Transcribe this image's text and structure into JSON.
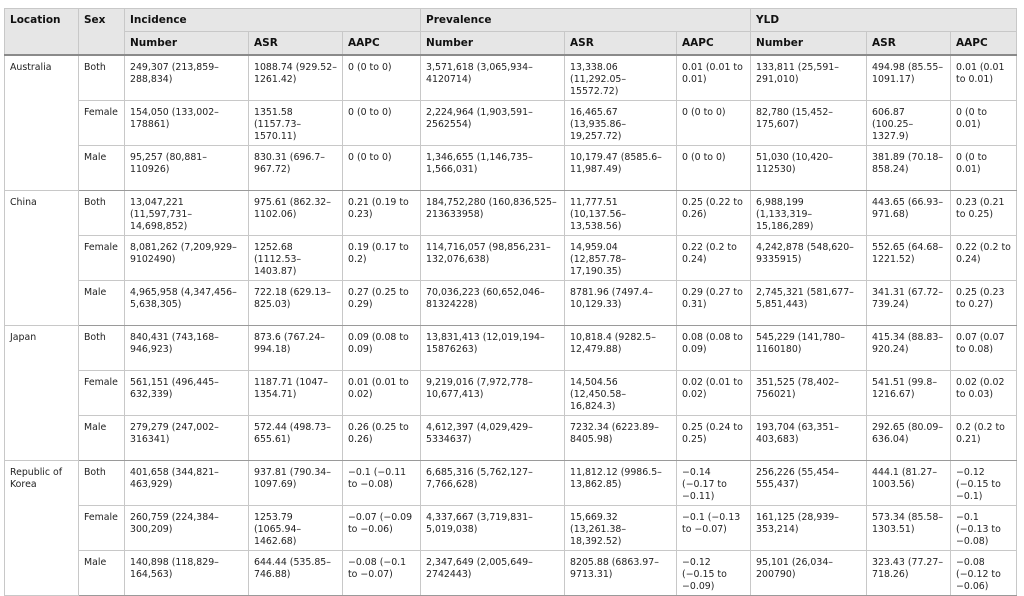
{
  "header": {
    "location": "Location",
    "sex": "Sex",
    "groups": [
      "Incidence",
      "Prevalence",
      "YLD"
    ],
    "subcolumns": [
      "Number",
      "ASR",
      "AAPC",
      "Number",
      "ASR",
      "AAPC",
      "Number",
      "ASR",
      "AAPC"
    ]
  },
  "locations": [
    {
      "name": "Australia",
      "rows": [
        {
          "sex": "Both",
          "cells": [
            "249,307 (213,859–288,834)",
            "1088.74 (929.52–1261.42)",
            "0 (0 to 0)",
            "3,571,618 (3,065,934–4120714)",
            "13,338.06 (11,292.05–15572.72)",
            "0.01 (0.01 to 0.01)",
            "133,811 (25,591–291,010)",
            "494.98 (85.55–1091.17)",
            "0.01 (0.01 to 0.01)"
          ]
        },
        {
          "sex": "Female",
          "cells": [
            "154,050 (133,002–178861)",
            "1351.58 (1157.73–1570.11)",
            "0 (0 to 0)",
            "2,224,964 (1,903,591–2562554)",
            "16,465.67 (13,935.86–19,257.72)",
            "0 (0 to 0)",
            "82,780 (15,452–175,607)",
            "606.87 (100.25–1327.9)",
            "0 (0 to 0.01)"
          ]
        },
        {
          "sex": "Male",
          "cells": [
            "95,257 (80,881–110926)",
            "830.31 (696.7–967.72)",
            "0 (0 to 0)",
            "1,346,655 (1,146,735–1,566,031)",
            "10,179.47 (8585.6–11,987.49)",
            "0 (0 to 0)",
            "51,030 (10,420–112530)",
            "381.89 (70.18–858.24)",
            "0 (0 to 0.01)"
          ]
        }
      ]
    },
    {
      "name": "China",
      "rows": [
        {
          "sex": "Both",
          "cells": [
            "13,047,221 (11,597,731–14,698,852)",
            "975.61 (862.32–1102.06)",
            "0.21 (0.19 to 0.23)",
            "184,752,280 (160,836,525–213633958)",
            "11,777.51 (10,137.56–13,538.56)",
            "0.25 (0.22 to 0.26)",
            "6,988,199 (1,133,319–15,186,289)",
            "443.65 (66.93–971.68)",
            "0.23 (0.21 to 0.25)"
          ]
        },
        {
          "sex": "Female",
          "cells": [
            "8,081,262 (7,209,929–9102490)",
            "1252.68 (1112.53–1403.87)",
            "0.19 (0.17 to 0.2)",
            "114,716,057 (98,856,231–132,076,638)",
            "14,959.04 (12,857.78–17,190.35)",
            "0.22 (0.2 to 0.24)",
            "4,242,878 (548,620–9335915)",
            "552.65 (64.68–1221.52)",
            "0.22 (0.2 to 0.24)"
          ]
        },
        {
          "sex": "Male",
          "cells": [
            "4,965,958 (4,347,456–5,638,305)",
            "722.18 (629.13–825.03)",
            "0.27 (0.25 to 0.29)",
            "70,036,223 (60,652,046–81324228)",
            "8781.96 (7497.4–10,129.33)",
            "0.29 (0.27 to 0.31)",
            "2,745,321 (581,677–5,851,443)",
            "341.31 (67.72–739.24)",
            "0.25 (0.23 to 0.27)"
          ]
        }
      ]
    },
    {
      "name": "Japan",
      "rows": [
        {
          "sex": "Both",
          "cells": [
            "840,431 (743,168–946,923)",
            "873.6 (767.24–994.18)",
            "0.09 (0.08 to 0.09)",
            "13,831,413 (12,019,194–15876263)",
            "10,818.4 (9282.5–12,479.88)",
            "0.08 (0.08 to 0.09)",
            "545,229 (141,780–1160180)",
            "415.34 (88.83–920.24)",
            "0.07 (0.07 to 0.08)"
          ]
        },
        {
          "sex": "Female",
          "cells": [
            "561,151 (496,445–632,339)",
            "1187.71 (1047–1354.71)",
            "0.01 (0.01 to 0.02)",
            "9,219,016 (7,972,778–10,677,413)",
            "14,504.56 (12,450.58–16,824.3)",
            "0.02 (0.01 to 0.02)",
            "351,525 (78,402–756021)",
            "541.51 (99.8–1216.67)",
            "0.02 (0.02 to 0.03)"
          ]
        },
        {
          "sex": "Male",
          "cells": [
            "279,279 (247,002–316341)",
            "572.44 (498.73–655.61)",
            "0.26 (0.25 to 0.26)",
            "4,612,397 (4,029,429–5334637)",
            "7232.34 (6223.89–8405.98)",
            "0.25 (0.24 to 0.25)",
            "193,704 (63,351–403,683)",
            "292.65 (80.09–636.04)",
            "0.2 (0.2 to 0.21)"
          ]
        }
      ]
    },
    {
      "name": "Republic of Korea",
      "rows": [
        {
          "sex": "Both",
          "cells": [
            "401,658 (344,821–463,929)",
            "937.81 (790.34–1097.69)",
            "−0.1 (−0.11 to −0.08)",
            "6,685,316 (5,762,127–7,766,628)",
            "11,812.12 (9986.5–13,862.85)",
            "−0.14 (−0.17 to −0.11)",
            "256,226 (55,454–555,437)",
            "444.1 (81.27–1003.56)",
            "−0.12 (−0.15 to −0.1)"
          ]
        },
        {
          "sex": "Female",
          "cells": [
            "260,759 (224,384–300,209)",
            "1253.79 (1065.94–1462.68)",
            "−0.07 (−0.09 to −0.06)",
            "4,337,667 (3,719,831–5,019,038)",
            "15,669.32 (13,261.38–18,392.52)",
            "−0.1 (−0.13 to −0.07)",
            "161,125 (28,939–353,214)",
            "573.34 (85.58–1303.51)",
            "−0.1 (−0.13 to −0.08)"
          ]
        },
        {
          "sex": "Male",
          "cells": [
            "140,898 (118,829–164,563)",
            "644.44 (535.85–746.88)",
            "−0.08 (−0.1 to −0.07)",
            "2,347,649 (2,005,649–2742443)",
            "8205.88 (6863.97–9713.31)",
            "−0.12 (−0.15 to −0.09)",
            "95,101 (26,034–200790)",
            "323.43 (77.27–718.26)",
            "−0.08 (−0.12 to −0.06)"
          ]
        }
      ]
    }
  ]
}
